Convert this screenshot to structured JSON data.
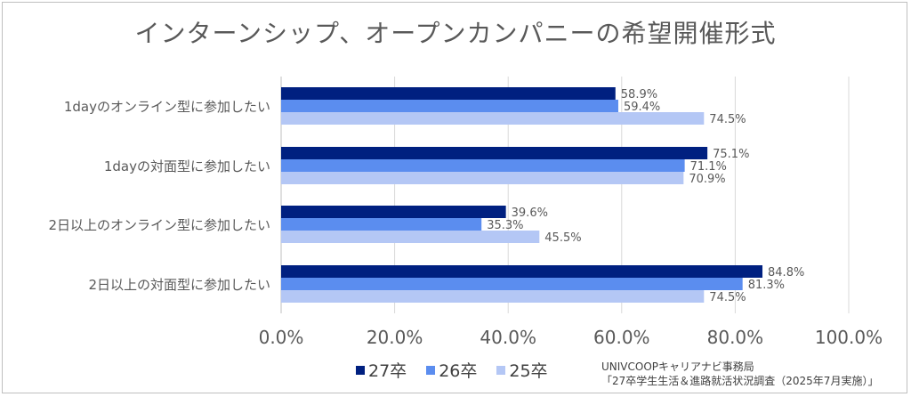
{
  "chart_data": {
    "type": "bar",
    "orientation": "horizontal",
    "title": "インターンシップ、オープンカンパニーの希望開催形式",
    "categories": [
      "1dayのオンライン型に参加したい",
      "1dayの対面型に参加したい",
      "2日以上のオンライン型に参加したい",
      "2日以上の対面型に参加したい"
    ],
    "series": [
      {
        "name": "27卒",
        "color": "#002080",
        "values": [
          58.9,
          75.1,
          39.6,
          84.8
        ],
        "labels": [
          "58.9%",
          "75.1%",
          "39.6%",
          "84.8%"
        ]
      },
      {
        "name": "26卒",
        "color": "#5b8def",
        "values": [
          59.4,
          71.1,
          35.3,
          81.3
        ],
        "labels": [
          "59.4%",
          "71.1%",
          "35.3%",
          "81.3%"
        ]
      },
      {
        "name": "25卒",
        "color": "#b4c7f5",
        "values": [
          74.5,
          70.9,
          45.5,
          74.5
        ],
        "labels": [
          "74.5%",
          "70.9%",
          "45.5%",
          "74.5%"
        ]
      }
    ],
    "xlim": [
      0,
      100
    ],
    "xticks": [
      "0.0%",
      "20.0%",
      "40.0%",
      "60.0%",
      "80.0%",
      "100.0%"
    ],
    "grid": true,
    "legend_position": "bottom"
  },
  "source": {
    "line1": "UNIVCOOPキャリアナビ事務局",
    "line2": "「27卒学生生活＆進路就活状況調査（2025年7月実施）」"
  }
}
